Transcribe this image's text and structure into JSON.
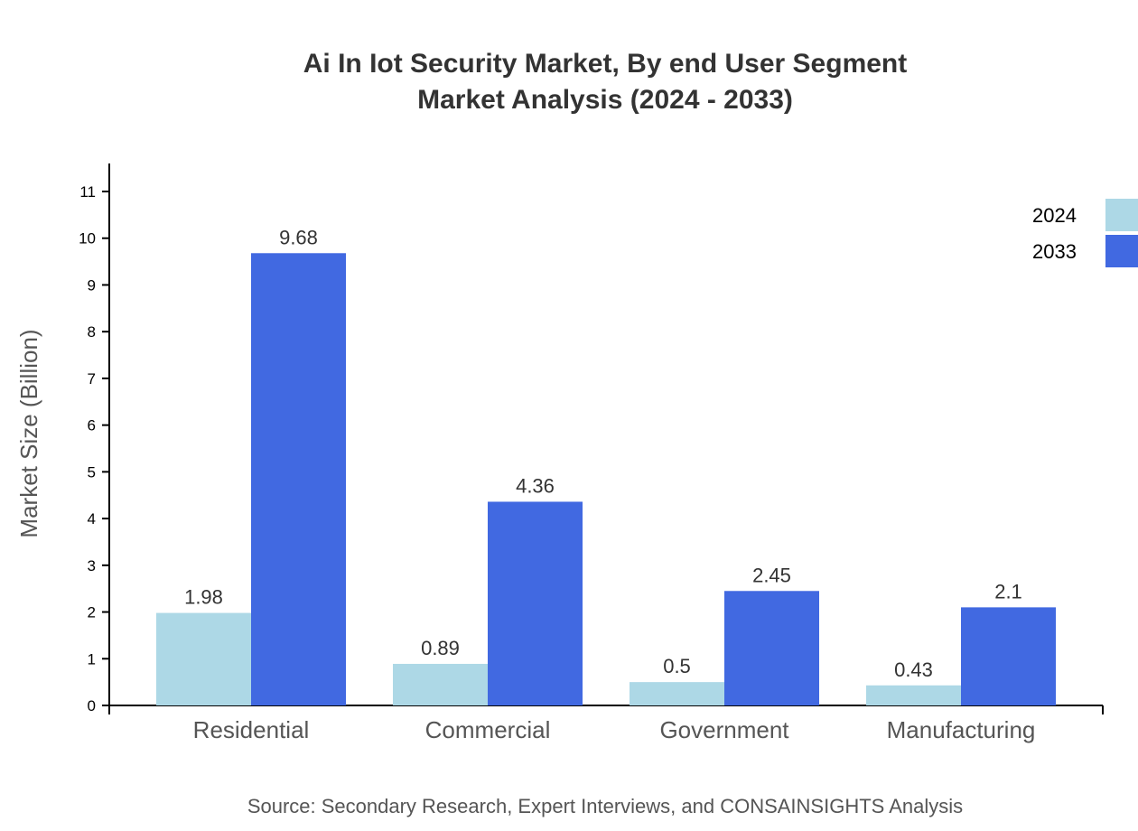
{
  "chart_data": {
    "type": "bar",
    "title": [
      "Ai In Iot Security Market, By end User Segment",
      "Market Analysis (2024 - 2033)"
    ],
    "ylabel": "Market Size (Billion)",
    "xlabel": "",
    "ylim": [
      0,
      11.6
    ],
    "yticks": [
      0,
      1,
      2,
      3,
      4,
      5,
      6,
      7,
      8,
      9,
      10,
      11
    ],
    "categories": [
      "Residential",
      "Commercial",
      "Government",
      "Manufacturing"
    ],
    "series": [
      {
        "name": "2024",
        "color": "#ADD8E6",
        "values": [
          1.98,
          0.89,
          0.5,
          0.43
        ],
        "labels": [
          "1.98",
          "0.89",
          "0.5",
          "0.43"
        ]
      },
      {
        "name": "2033",
        "color": "#4169E1",
        "values": [
          9.68,
          4.36,
          2.45,
          2.1
        ],
        "labels": [
          "9.68",
          "4.36",
          "2.45",
          "2.1"
        ]
      }
    ],
    "legend": "top-right",
    "grid": false,
    "source": "Source: Secondary Research, Expert Interviews, and CONSAINSIGHTS Analysis"
  }
}
